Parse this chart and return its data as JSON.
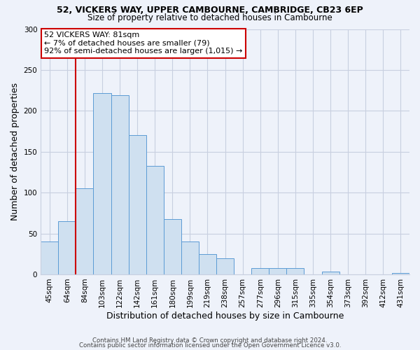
{
  "title": "52, VICKERS WAY, UPPER CAMBOURNE, CAMBRIDGE, CB23 6EP",
  "subtitle": "Size of property relative to detached houses in Cambourne",
  "xlabel": "Distribution of detached houses by size in Cambourne",
  "ylabel": "Number of detached properties",
  "footer1": "Contains HM Land Registry data © Crown copyright and database right 2024.",
  "footer2": "Contains public sector information licensed under the Open Government Licence v3.0.",
  "bin_labels": [
    "45sqm",
    "64sqm",
    "84sqm",
    "103sqm",
    "122sqm",
    "142sqm",
    "161sqm",
    "180sqm",
    "199sqm",
    "219sqm",
    "238sqm",
    "257sqm",
    "277sqm",
    "296sqm",
    "315sqm",
    "335sqm",
    "354sqm",
    "373sqm",
    "392sqm",
    "412sqm",
    "431sqm"
  ],
  "bar_values": [
    40,
    65,
    105,
    222,
    219,
    170,
    133,
    68,
    40,
    25,
    20,
    0,
    8,
    8,
    8,
    0,
    3,
    0,
    0,
    0,
    2
  ],
  "bar_color": "#cfe0f0",
  "bar_edge_color": "#5b9bd5",
  "vline_color": "#cc0000",
  "vline_xindex": 2,
  "annotation_title": "52 VICKERS WAY: 81sqm",
  "annotation_line1": "← 7% of detached houses are smaller (79)",
  "annotation_line2": "92% of semi-detached houses are larger (1,015) →",
  "annotation_box_edgecolor": "#cc0000",
  "ylim": [
    0,
    300
  ],
  "yticks": [
    0,
    50,
    100,
    150,
    200,
    250,
    300
  ],
  "background_color": "#eef2fa",
  "grid_color": "#c8cfe0"
}
